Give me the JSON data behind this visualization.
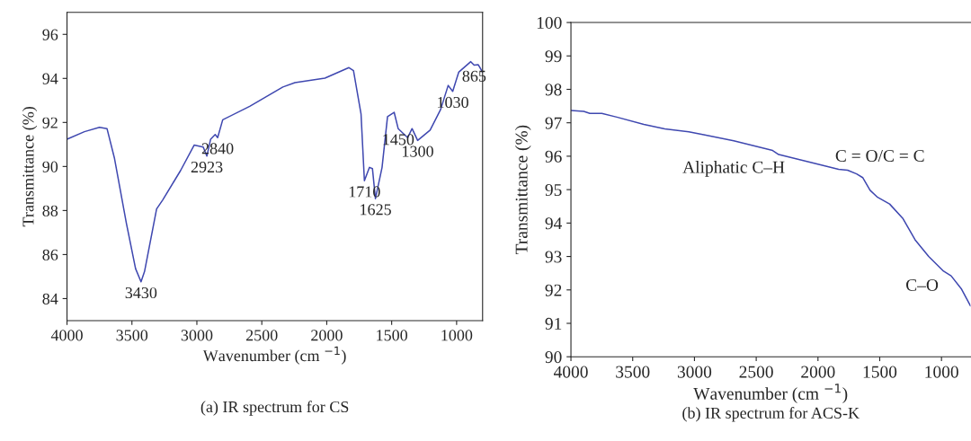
{
  "chart_data": [
    {
      "type": "line",
      "title": "(a) IR spectrum for CS",
      "xlabel": "Wavenumber (cm $^{−1}$)",
      "ylabel": "Transmittance (%)",
      "x": [
        4000,
        3866,
        3750,
        3692,
        3634,
        3542,
        3472,
        3430,
        3403,
        3310,
        3264,
        3125,
        3021,
        2951,
        2923,
        2894,
        2859,
        2840,
        2801,
        2593,
        2338,
        2245,
        2014,
        1829,
        1794,
        1736,
        1710,
        1671,
        1648,
        1625,
        1574,
        1532,
        1481,
        1450,
        1377,
        1343,
        1300,
        1204,
        1123,
        1065,
        1030,
        984,
        891,
        865,
        833,
        800
      ],
      "series": [
        {
          "color": "#3f48b0",
          "values": [
            91.24,
            91.58,
            91.78,
            91.72,
            90.36,
            87.4,
            85.36,
            84.76,
            85.23,
            88.07,
            88.47,
            89.82,
            90.97,
            90.88,
            90.47,
            91.24,
            91.45,
            91.31,
            92.12,
            92.73,
            93.61,
            93.81,
            94.01,
            94.49,
            94.35,
            92.39,
            89.35,
            89.96,
            89.9,
            88.54,
            89.96,
            92.26,
            92.46,
            91.72,
            91.31,
            91.72,
            91.18,
            91.65,
            92.59,
            93.68,
            93.41,
            94.28,
            94.76,
            94.6,
            94.62,
            94.28
          ]
        }
      ],
      "xlim": [
        4000,
        800
      ],
      "ylim": [
        83,
        97
      ],
      "xticks": [
        4000,
        3500,
        3000,
        2500,
        2000,
        1500,
        1000
      ],
      "yticks": [
        84,
        86,
        88,
        90,
        92,
        94,
        96
      ],
      "annotations": [
        {
          "text": "3430",
          "x": 3430,
          "y": 84.76
        },
        {
          "text": "2923",
          "x": 2923,
          "y": 90.47
        },
        {
          "text": "2840",
          "x": 2840,
          "y": 91.31
        },
        {
          "text": "1710",
          "x": 1710,
          "y": 89.35
        },
        {
          "text": "1625",
          "x": 1625,
          "y": 88.54
        },
        {
          "text": "1450",
          "x": 1450,
          "y": 91.72
        },
        {
          "text": "1300",
          "x": 1300,
          "y": 91.18
        },
        {
          "text": "1030",
          "x": 1030,
          "y": 93.41
        },
        {
          "text": "865",
          "x": 865,
          "y": 94.6
        }
      ],
      "grid": false,
      "legend": false
    },
    {
      "type": "line",
      "title": "(b) IR spectrum for ACS-K",
      "xlabel": "Wavenumber (cm $^{−1}$)",
      "ylabel": "Transmittance (%)",
      "x": [
        4000,
        3896,
        3847,
        3750,
        3629,
        3410,
        3240,
        3046,
        2925,
        2682,
        2367,
        2318,
        2075,
        1833,
        1760,
        1687,
        1638,
        1578,
        1517,
        1420,
        1311,
        1214,
        1104,
        983,
        922,
        837,
        765
      ],
      "series": [
        {
          "color": "#3f48b0",
          "values": [
            97.37,
            97.34,
            97.28,
            97.28,
            97.17,
            96.95,
            96.82,
            96.73,
            96.64,
            96.46,
            96.17,
            96.05,
            95.83,
            95.61,
            95.58,
            95.47,
            95.36,
            94.98,
            94.77,
            94.57,
            94.13,
            93.5,
            93.0,
            92.56,
            92.42,
            92.02,
            91.52
          ]
        }
      ],
      "xlim": [
        4000,
        765
      ],
      "ylim": [
        90,
        100
      ],
      "xticks": [
        4000,
        3500,
        3000,
        2500,
        2000,
        1500,
        1000
      ],
      "yticks": [
        90,
        91,
        92,
        93,
        94,
        95,
        96,
        97,
        98,
        99,
        100
      ],
      "annotations": [
        "Aliphatic C–H",
        "C = O/C = C",
        "C–O"
      ],
      "grid": false,
      "legend": false
    }
  ]
}
